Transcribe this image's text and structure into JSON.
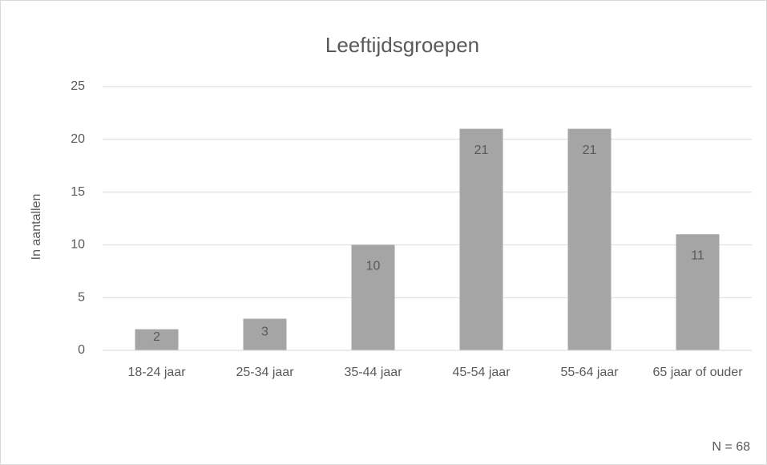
{
  "chart_data": {
    "type": "bar",
    "title": "Leeftijdsgroepen",
    "y_label": "In aantallen",
    "categories": [
      "18-24 jaar",
      "25-34 jaar",
      "35-44 jaar",
      "45-54 jaar",
      "55-64 jaar",
      "65 jaar of ouder"
    ],
    "values": [
      2,
      3,
      10,
      21,
      21,
      11
    ],
    "color": "#a5a5a5",
    "ylim": [
      0,
      25
    ],
    "yticks": [
      0,
      5,
      10,
      15,
      20,
      25
    ],
    "grid": true,
    "annotation": "N = 68"
  }
}
